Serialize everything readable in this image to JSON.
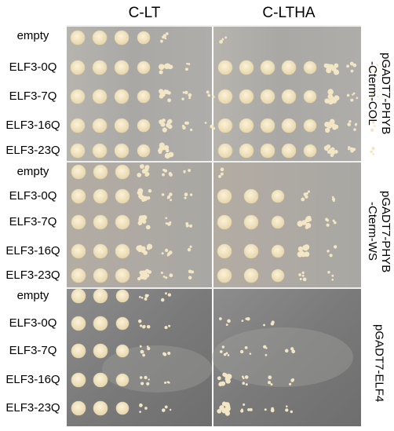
{
  "columns": [
    "C-LT",
    "C-LTHA"
  ],
  "panels": [
    {
      "construct_line1": "pGADT7-PHYB",
      "construct_line2": "-Cterm-COL",
      "rows": [
        {
          "label": "empty",
          "growth_lt": [
            5,
            5,
            5,
            4,
            2,
            0,
            0
          ],
          "growth_ltha": [
            1,
            0,
            0,
            0,
            0,
            0,
            0,
            0
          ]
        },
        {
          "label": "ELF3-0Q",
          "growth_lt": [
            5,
            5,
            5,
            4,
            3,
            1,
            0
          ],
          "growth_ltha": [
            5,
            5,
            5,
            5,
            4,
            3,
            2,
            1
          ]
        },
        {
          "label": "ELF3-7Q",
          "growth_lt": [
            5,
            5,
            5,
            4,
            3,
            2,
            1
          ],
          "growth_ltha": [
            5,
            5,
            5,
            5,
            4,
            3,
            2,
            1
          ]
        },
        {
          "label": "ELF3-16Q",
          "growth_lt": [
            5,
            5,
            5,
            4,
            3,
            2,
            1
          ],
          "growth_ltha": [
            5,
            5,
            5,
            5,
            4,
            3,
            2,
            1
          ]
        },
        {
          "label": "ELF3-23Q",
          "growth_lt": [
            5,
            5,
            5,
            4,
            3,
            0,
            0
          ],
          "growth_ltha": [
            5,
            5,
            5,
            5,
            4,
            3,
            2,
            1
          ]
        }
      ]
    },
    {
      "construct_line1": "pGADT7-PHYB",
      "construct_line2": "-Cterm-WS",
      "rows": [
        {
          "label": "empty",
          "growth_lt": [
            5,
            5,
            5,
            3,
            2,
            1,
            0
          ],
          "growth_ltha": [
            1,
            0,
            0,
            0,
            0,
            0
          ]
        },
        {
          "label": "ELF3-0Q",
          "growth_lt": [
            5,
            5,
            5,
            3,
            2,
            1,
            0
          ],
          "growth_ltha": [
            5,
            5,
            4,
            2,
            1,
            0
          ]
        },
        {
          "label": "ELF3-7Q",
          "growth_lt": [
            5,
            5,
            5,
            3,
            2,
            1,
            0
          ],
          "growth_ltha": [
            5,
            5,
            4,
            3,
            2,
            0
          ]
        },
        {
          "label": "ELF3-16Q",
          "growth_lt": [
            5,
            5,
            5,
            3,
            2,
            1,
            0
          ],
          "growth_ltha": [
            5,
            5,
            4,
            3,
            1,
            0
          ]
        },
        {
          "label": "ELF3-23Q",
          "growth_lt": [
            5,
            5,
            5,
            3,
            2,
            1,
            0
          ],
          "growth_ltha": [
            5,
            5,
            4,
            2,
            1,
            0
          ]
        }
      ]
    },
    {
      "construct_line1": "pGADT7-ELF4",
      "construct_line2": "",
      "rows": [
        {
          "label": "empty",
          "growth_lt": [
            5,
            5,
            4,
            2,
            1,
            0
          ],
          "growth_ltha": [
            0,
            0,
            0,
            0,
            0,
            0
          ]
        },
        {
          "label": "ELF3-0Q",
          "growth_lt": [
            5,
            5,
            4,
            2,
            1,
            0
          ],
          "growth_ltha": [
            1,
            1,
            1,
            0,
            0,
            0
          ]
        },
        {
          "label": "ELF3-7Q",
          "growth_lt": [
            5,
            5,
            4,
            2,
            1,
            0
          ],
          "growth_ltha": [
            2,
            1,
            1,
            1,
            0,
            0
          ]
        },
        {
          "label": "ELF3-16Q",
          "growth_lt": [
            5,
            5,
            4,
            2,
            1,
            0
          ],
          "growth_ltha": [
            3,
            2,
            1,
            1,
            0,
            0
          ]
        },
        {
          "label": "ELF3-23Q",
          "growth_lt": [
            5,
            5,
            4,
            2,
            1,
            0
          ],
          "growth_ltha": [
            3,
            2,
            1,
            1,
            0,
            0
          ]
        }
      ]
    }
  ],
  "colors": {
    "agar_dark": "#7b7b7b",
    "agar_mid": "#9a9a9a",
    "agar_light": "#b8b6b2",
    "colony": "#f3e6c4",
    "colony_edge": "#dccfa9",
    "divider": "#eeeeee"
  }
}
